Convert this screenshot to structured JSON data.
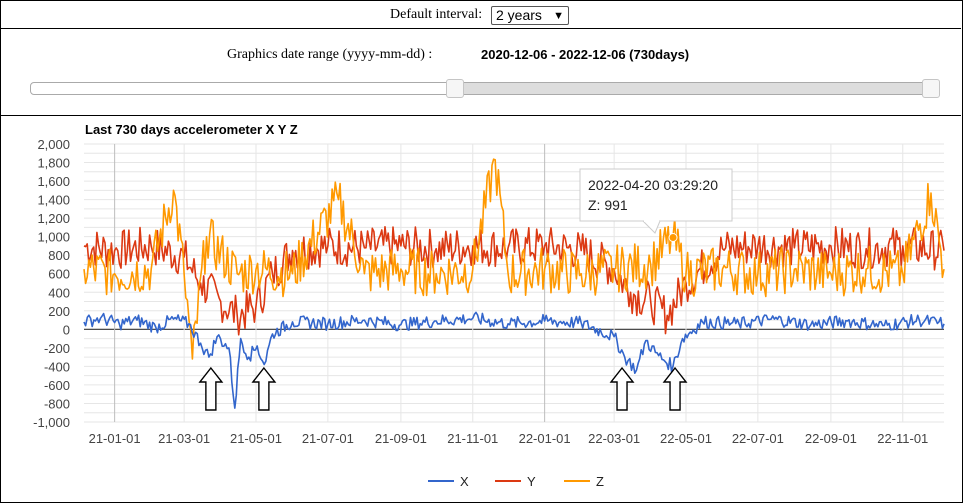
{
  "controls": {
    "interval_label": "Default interval:",
    "interval_selected": "2 years",
    "range_label": "Graphics date range (yyyy-mm-dd) :",
    "range_value": "2020-12-06 - 2022-12-06 (730days)",
    "slider_start_fraction": 0.466,
    "slider_end_fraction": 1.0
  },
  "colors": {
    "x": "#3366cc",
    "y": "#dc3912",
    "z": "#ff9900",
    "grid": "#e6e6e6",
    "axis": "#333333"
  },
  "tooltip": {
    "line1": "2022-04-20 03:29:20",
    "line2": "Z: 991"
  },
  "annotations": {
    "arrow_icon": "up-arrow-icon",
    "arrow_dates": [
      "2021-03-22",
      "2021-05-06",
      "2022-03-06",
      "2022-04-20"
    ]
  },
  "chart_data": {
    "type": "line",
    "title": "Last 730 days accelerometer X Y Z",
    "xlabel": "",
    "ylabel": "",
    "x_range": [
      "2020-12-06",
      "2022-12-06"
    ],
    "x_ticks": [
      "21-01-01",
      "21-03-01",
      "21-05-01",
      "21-07-01",
      "21-09-01",
      "21-11-01",
      "22-01-01",
      "22-03-01",
      "22-05-01",
      "22-07-01",
      "22-09-01",
      "22-11-01"
    ],
    "x_tick_dates": [
      "2021-01-01",
      "2021-03-01",
      "2021-05-01",
      "2021-07-01",
      "2021-09-01",
      "2021-11-01",
      "2022-01-01",
      "2022-03-01",
      "2022-05-01",
      "2022-07-01",
      "2022-09-01",
      "2022-11-01"
    ],
    "ylim": [
      -1000,
      2000
    ],
    "y_ticks": [
      "-1,000",
      "-800",
      "-600",
      "-400",
      "-200",
      "0",
      "200",
      "400",
      "600",
      "800",
      "1,000",
      "1,200",
      "1,400",
      "1,600",
      "1,800",
      "2,000"
    ],
    "grid": true,
    "legend_position": "bottom",
    "series": [
      {
        "name": "X",
        "points": [
          [
            "2020-12-06",
            80
          ],
          [
            "2020-12-20",
            120
          ],
          [
            "2021-01-05",
            60
          ],
          [
            "2021-01-20",
            100
          ],
          [
            "2021-02-05",
            20
          ],
          [
            "2021-02-20",
            110
          ],
          [
            "2021-03-05",
            60
          ],
          [
            "2021-03-15",
            -150
          ],
          [
            "2021-03-22",
            -300
          ],
          [
            "2021-03-29",
            -80
          ],
          [
            "2021-04-08",
            -200
          ],
          [
            "2021-04-13",
            -850
          ],
          [
            "2021-04-18",
            -100
          ],
          [
            "2021-04-25",
            -300
          ],
          [
            "2021-05-02",
            -180
          ],
          [
            "2021-05-08",
            -380
          ],
          [
            "2021-05-15",
            -50
          ],
          [
            "2021-06-01",
            80
          ],
          [
            "2021-07-01",
            60
          ],
          [
            "2021-08-01",
            100
          ],
          [
            "2021-09-01",
            50
          ],
          [
            "2021-10-01",
            90
          ],
          [
            "2021-11-01",
            120
          ],
          [
            "2021-12-01",
            60
          ],
          [
            "2022-01-01",
            90
          ],
          [
            "2022-02-01",
            70
          ],
          [
            "2022-03-01",
            -80
          ],
          [
            "2022-03-10",
            -300
          ],
          [
            "2022-03-20",
            -440
          ],
          [
            "2022-03-28",
            -120
          ],
          [
            "2022-04-05",
            -250
          ],
          [
            "2022-04-12",
            -330
          ],
          [
            "2022-04-20",
            -400
          ],
          [
            "2022-04-28",
            -100
          ],
          [
            "2022-05-15",
            80
          ],
          [
            "2022-06-15",
            60
          ],
          [
            "2022-07-15",
            110
          ],
          [
            "2022-08-15",
            50
          ],
          [
            "2022-09-15",
            90
          ],
          [
            "2022-10-15",
            40
          ],
          [
            "2022-11-15",
            100
          ],
          [
            "2022-12-06",
            60
          ]
        ]
      },
      {
        "name": "Y",
        "points": [
          [
            "2020-12-06",
            900
          ],
          [
            "2021-01-01",
            850
          ],
          [
            "2021-02-01",
            900
          ],
          [
            "2021-03-01",
            780
          ],
          [
            "2021-03-15",
            500
          ],
          [
            "2021-04-01",
            300
          ],
          [
            "2021-04-15",
            150
          ],
          [
            "2021-05-01",
            250
          ],
          [
            "2021-05-15",
            600
          ],
          [
            "2021-06-01",
            850
          ],
          [
            "2021-07-01",
            900
          ],
          [
            "2021-08-01",
            880
          ],
          [
            "2021-09-01",
            900
          ],
          [
            "2021-10-01",
            870
          ],
          [
            "2021-11-01",
            900
          ],
          [
            "2021-12-01",
            880
          ],
          [
            "2022-01-01",
            900
          ],
          [
            "2022-02-01",
            850
          ],
          [
            "2022-03-01",
            650
          ],
          [
            "2022-03-15",
            400
          ],
          [
            "2022-04-01",
            300
          ],
          [
            "2022-04-15",
            150
          ],
          [
            "2022-05-01",
            500
          ],
          [
            "2022-06-01",
            870
          ],
          [
            "2022-07-01",
            900
          ],
          [
            "2022-08-01",
            880
          ],
          [
            "2022-09-01",
            900
          ],
          [
            "2022-10-01",
            870
          ],
          [
            "2022-11-01",
            900
          ],
          [
            "2022-12-06",
            850
          ]
        ]
      },
      {
        "name": "Z",
        "points": [
          [
            "2020-12-06",
            650
          ],
          [
            "2021-01-01",
            600
          ],
          [
            "2021-02-01",
            650
          ],
          [
            "2021-02-20",
            1500
          ],
          [
            "2021-03-01",
            600
          ],
          [
            "2021-03-08",
            -320
          ],
          [
            "2021-03-20",
            1000
          ],
          [
            "2021-04-15",
            600
          ],
          [
            "2021-05-01",
            650
          ],
          [
            "2021-06-01",
            600
          ],
          [
            "2021-07-10",
            1400
          ],
          [
            "2021-08-01",
            600
          ],
          [
            "2021-09-01",
            650
          ],
          [
            "2021-10-01",
            600
          ],
          [
            "2021-11-01",
            650
          ],
          [
            "2021-11-20",
            1830
          ],
          [
            "2021-12-01",
            600
          ],
          [
            "2022-01-01",
            650
          ],
          [
            "2022-02-01",
            600
          ],
          [
            "2022-03-01",
            650
          ],
          [
            "2022-04-01",
            700
          ],
          [
            "2022-04-20",
            991
          ],
          [
            "2022-05-01",
            600
          ],
          [
            "2022-06-01",
            650
          ],
          [
            "2022-07-01",
            600
          ],
          [
            "2022-08-01",
            650
          ],
          [
            "2022-09-01",
            600
          ],
          [
            "2022-10-01",
            650
          ],
          [
            "2022-11-01",
            600
          ],
          [
            "2022-11-25",
            1470
          ],
          [
            "2022-12-06",
            650
          ]
        ]
      }
    ]
  }
}
